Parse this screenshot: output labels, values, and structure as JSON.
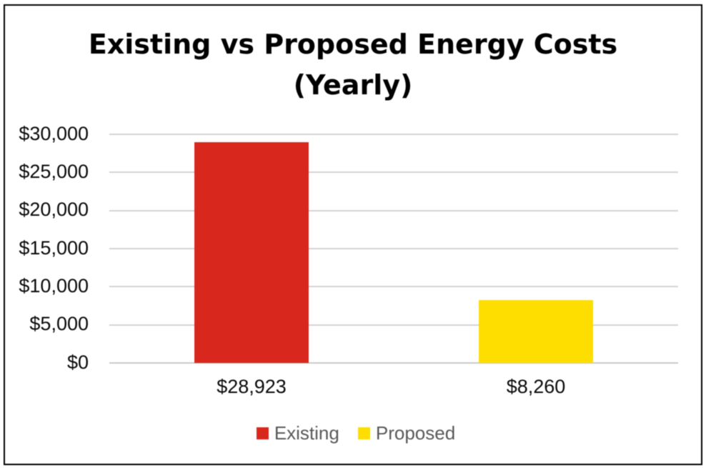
{
  "chart": {
    "title_line1": "Existing vs Proposed Energy Costs",
    "title_line2": "(Yearly)"
  },
  "chart_data": {
    "type": "bar",
    "title": "Existing vs Proposed Energy Costs (Yearly)",
    "categories": [
      "$28,923",
      "$8,260"
    ],
    "bars": [
      {
        "category": "$28,923",
        "series": "Existing",
        "value": 28923,
        "color": "#d8281e"
      },
      {
        "category": "$8,260",
        "series": "Proposed",
        "value": 8260,
        "color": "#fdde00"
      }
    ],
    "series": [
      {
        "name": "Existing",
        "color": "#d8281e",
        "values": [
          28923,
          null
        ]
      },
      {
        "name": "Proposed",
        "color": "#fdde00",
        "values": [
          null,
          8260
        ]
      }
    ],
    "legend": [
      {
        "label": "Existing",
        "color": "#d8281e"
      },
      {
        "label": "Proposed",
        "color": "#fdde00"
      }
    ],
    "xlabel": "",
    "ylabel": "",
    "ylim": [
      0,
      30000
    ],
    "ytick_step": 5000,
    "yticks": [
      "$0",
      "$5,000",
      "$10,000",
      "$15,000",
      "$20,000",
      "$25,000",
      "$30,000"
    ],
    "grid": true,
    "legend_position": "bottom"
  }
}
